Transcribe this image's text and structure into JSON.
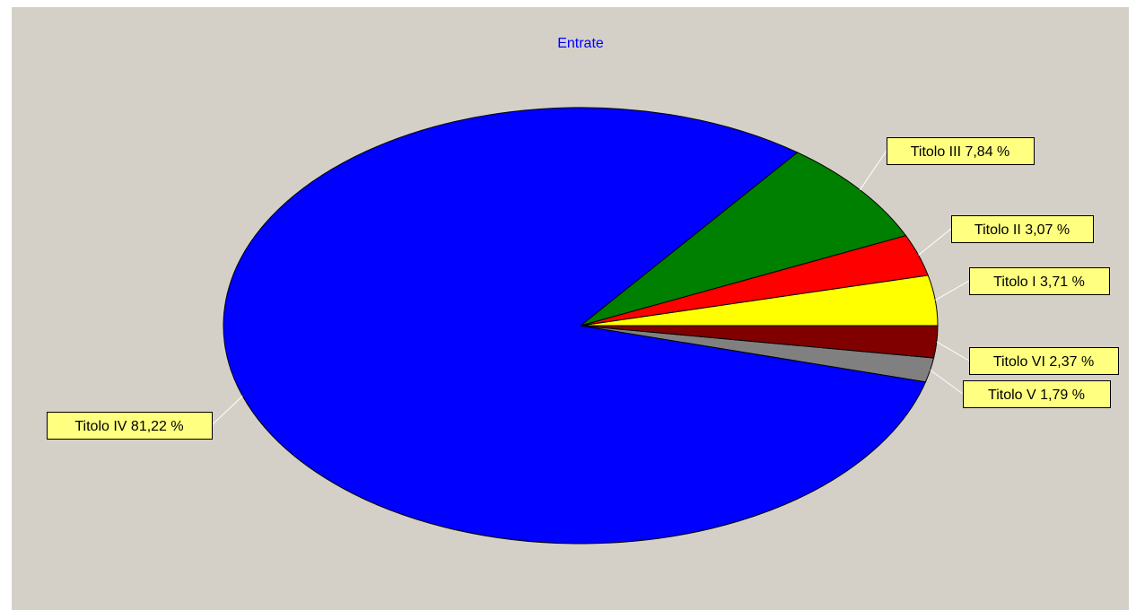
{
  "chart_data": {
    "type": "pie",
    "title": "Entrate",
    "labels": [
      {
        "name": "Titolo IV",
        "value_text": "81,22 %"
      },
      {
        "name": "Titolo III",
        "value_text": "7,84 %"
      },
      {
        "name": "Titolo II",
        "value_text": "3,07 %"
      },
      {
        "name": "Titolo I",
        "value_text": "3,71 %"
      },
      {
        "name": "Titolo VI",
        "value_text": "2,37 %"
      },
      {
        "name": "Titolo V",
        "value_text": "1,79 %"
      }
    ],
    "slices": [
      {
        "name": "Titolo IV",
        "value": 81.22,
        "color": "#0000ff"
      },
      {
        "name": "Titolo III",
        "value": 7.84,
        "color": "#008000"
      },
      {
        "name": "Titolo II",
        "value": 3.07,
        "color": "#ff0000"
      },
      {
        "name": "Titolo I",
        "value": 3.71,
        "color": "#ffff00"
      },
      {
        "name": "Titolo VI",
        "value": 2.37,
        "color": "#800000"
      },
      {
        "name": "Titolo V",
        "value": 1.79,
        "color": "#808080"
      }
    ],
    "background_color": "#d4d0c8",
    "label_background_color": "#ffff80",
    "title_color": "#0000ff"
  }
}
